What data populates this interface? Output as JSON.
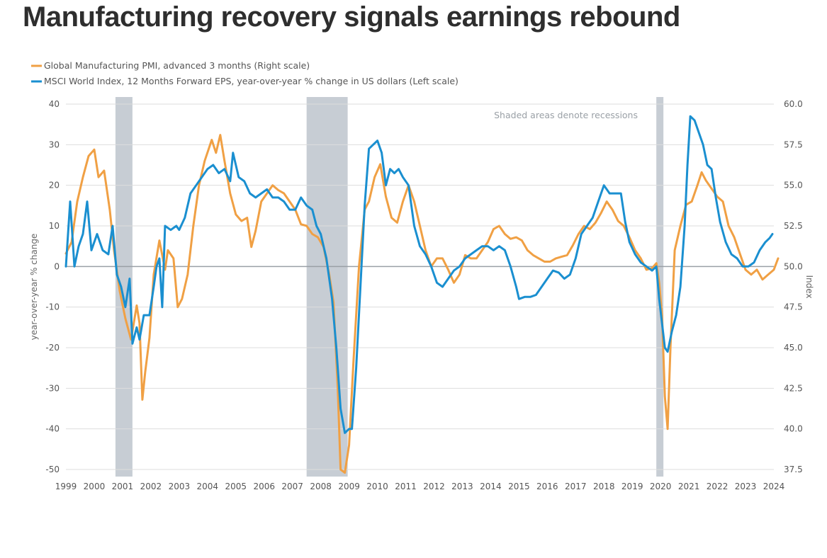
{
  "headline": "Manufacturing recovery signals earnings rebound",
  "chart_data": {
    "type": "line",
    "colors": {
      "pmi": "#F0A044",
      "eps": "#1A8FD0",
      "recession": "#C7CDD4",
      "grid": "#DDDDDD",
      "zero_line": "#9AA0A6"
    },
    "legend": [
      "Global Manufacturing PMI, advanced 3 months (Right scale)",
      "MSCI World Index, 12 Months Forward EPS, year-over-year % change in US dollars (Left scale)"
    ],
    "legend_position": "top-left",
    "annotation": "Shaded areas denote recessions",
    "ylabel_left": "year-over-year % change",
    "ylabel_right": "Index",
    "ylim_left": [
      -50,
      40
    ],
    "ylim_right": [
      37.5,
      60.0
    ],
    "xlim": [
      1999,
      2024
    ],
    "grid": true,
    "x_ticks": [
      "1999",
      "2000",
      "2001",
      "2002",
      "2003",
      "2004",
      "2005",
      "2006",
      "2007",
      "2008",
      "2009",
      "2010",
      "2011",
      "2012",
      "2013",
      "2014",
      "2015",
      "2016",
      "2017",
      "2018",
      "2019",
      "2020",
      "2021",
      "2022",
      "2023",
      "2024"
    ],
    "y_ticks_left": [
      "40",
      "30",
      "20",
      "10",
      "0",
      "-10",
      "-20",
      "-30",
      "-40",
      "-50"
    ],
    "y_ticks_right": [
      "60.0",
      "57.5",
      "55.0",
      "52.5",
      "50.0",
      "47.5",
      "45.0",
      "42.5",
      "40.0",
      "37.5"
    ],
    "recessions": [
      [
        2000.75,
        2001.35
      ],
      [
        2007.5,
        2008.95
      ],
      [
        2019.85,
        2020.1
      ]
    ],
    "series": [
      {
        "name": "Global Manufacturing PMI, advanced 3 months (Right scale)",
        "key": "pmi",
        "axis": "right",
        "points": [
          [
            1999.0,
            50.8
          ],
          [
            1999.2,
            51.5
          ],
          [
            1999.4,
            54.0
          ],
          [
            1999.6,
            55.5
          ],
          [
            1999.8,
            56.8
          ],
          [
            2000.0,
            57.2
          ],
          [
            2000.15,
            55.5
          ],
          [
            2000.35,
            55.9
          ],
          [
            2000.55,
            53.5
          ],
          [
            2000.7,
            51.0
          ],
          [
            2000.9,
            48.5
          ],
          [
            2001.1,
            46.8
          ],
          [
            2001.3,
            45.5
          ],
          [
            2001.5,
            47.6
          ],
          [
            2001.6,
            46.5
          ],
          [
            2001.7,
            41.8
          ],
          [
            2001.8,
            43.5
          ],
          [
            2001.95,
            45.6
          ],
          [
            2002.1,
            49.5
          ],
          [
            2002.3,
            51.6
          ],
          [
            2002.5,
            49.8
          ],
          [
            2002.6,
            51.0
          ],
          [
            2002.8,
            50.5
          ],
          [
            2002.95,
            47.5
          ],
          [
            2003.1,
            48.0
          ],
          [
            2003.3,
            49.5
          ],
          [
            2003.5,
            52.5
          ],
          [
            2003.7,
            55.0
          ],
          [
            2003.9,
            56.5
          ],
          [
            2004.15,
            57.8
          ],
          [
            2004.3,
            57.0
          ],
          [
            2004.45,
            58.1
          ],
          [
            2004.6,
            56.5
          ],
          [
            2004.8,
            54.5
          ],
          [
            2005.0,
            53.2
          ],
          [
            2005.2,
            52.8
          ],
          [
            2005.4,
            53.0
          ],
          [
            2005.55,
            51.2
          ],
          [
            2005.7,
            52.2
          ],
          [
            2005.9,
            54.0
          ],
          [
            2006.1,
            54.5
          ],
          [
            2006.3,
            55.0
          ],
          [
            2006.5,
            54.7
          ],
          [
            2006.7,
            54.5
          ],
          [
            2006.9,
            54.0
          ],
          [
            2007.1,
            53.5
          ],
          [
            2007.3,
            52.6
          ],
          [
            2007.5,
            52.5
          ],
          [
            2007.7,
            52.0
          ],
          [
            2007.9,
            51.8
          ],
          [
            2008.1,
            51.2
          ],
          [
            2008.3,
            49.5
          ],
          [
            2008.45,
            47.8
          ],
          [
            2008.6,
            42.5
          ],
          [
            2008.7,
            37.5
          ],
          [
            2008.85,
            37.3
          ],
          [
            2009.0,
            39.0
          ],
          [
            2009.15,
            44.0
          ],
          [
            2009.35,
            50.0
          ],
          [
            2009.55,
            53.5
          ],
          [
            2009.7,
            54.0
          ],
          [
            2009.9,
            55.5
          ],
          [
            2010.1,
            56.3
          ],
          [
            2010.3,
            54.3
          ],
          [
            2010.5,
            53.0
          ],
          [
            2010.7,
            52.7
          ],
          [
            2010.9,
            54.0
          ],
          [
            2011.1,
            55.0
          ],
          [
            2011.3,
            54.0
          ],
          [
            2011.5,
            52.5
          ],
          [
            2011.7,
            51.0
          ],
          [
            2011.9,
            50.0
          ],
          [
            2012.1,
            50.5
          ],
          [
            2012.3,
            50.5
          ],
          [
            2012.5,
            49.8
          ],
          [
            2012.7,
            49.0
          ],
          [
            2012.9,
            49.5
          ],
          [
            2013.1,
            50.7
          ],
          [
            2013.3,
            50.5
          ],
          [
            2013.5,
            50.5
          ],
          [
            2013.7,
            51.0
          ],
          [
            2013.9,
            51.5
          ],
          [
            2014.1,
            52.3
          ],
          [
            2014.3,
            52.5
          ],
          [
            2014.5,
            52.0
          ],
          [
            2014.7,
            51.7
          ],
          [
            2014.9,
            51.8
          ],
          [
            2015.1,
            51.6
          ],
          [
            2015.3,
            51.0
          ],
          [
            2015.5,
            50.7
          ],
          [
            2015.7,
            50.5
          ],
          [
            2015.9,
            50.3
          ],
          [
            2016.1,
            50.3
          ],
          [
            2016.3,
            50.5
          ],
          [
            2016.5,
            50.6
          ],
          [
            2016.7,
            50.7
          ],
          [
            2016.9,
            51.3
          ],
          [
            2017.1,
            52.0
          ],
          [
            2017.3,
            52.5
          ],
          [
            2017.5,
            52.3
          ],
          [
            2017.7,
            52.7
          ],
          [
            2017.9,
            53.3
          ],
          [
            2018.1,
            54.0
          ],
          [
            2018.3,
            53.5
          ],
          [
            2018.5,
            52.8
          ],
          [
            2018.7,
            52.5
          ],
          [
            2018.9,
            51.8
          ],
          [
            2019.1,
            51.0
          ],
          [
            2019.3,
            50.5
          ],
          [
            2019.5,
            49.8
          ],
          [
            2019.7,
            49.9
          ],
          [
            2019.85,
            50.2
          ],
          [
            2019.95,
            49.0
          ],
          [
            2020.05,
            47.0
          ],
          [
            2020.15,
            42.0
          ],
          [
            2020.25,
            40.0
          ],
          [
            2020.35,
            45.0
          ],
          [
            2020.5,
            51.0
          ],
          [
            2020.7,
            52.5
          ],
          [
            2020.9,
            53.8
          ],
          [
            2021.1,
            54.0
          ],
          [
            2021.3,
            55.0
          ],
          [
            2021.45,
            55.8
          ],
          [
            2021.6,
            55.3
          ],
          [
            2021.8,
            54.8
          ],
          [
            2022.0,
            54.3
          ],
          [
            2022.2,
            54.0
          ],
          [
            2022.4,
            52.5
          ],
          [
            2022.6,
            51.8
          ],
          [
            2022.8,
            50.8
          ],
          [
            2023.0,
            49.8
          ],
          [
            2023.2,
            49.5
          ],
          [
            2023.4,
            49.8
          ],
          [
            2023.6,
            49.2
          ],
          [
            2023.8,
            49.5
          ],
          [
            2024.0,
            49.8
          ],
          [
            2024.15,
            50.5
          ]
        ]
      },
      {
        "name": "MSCI World Index, 12 Months Forward EPS, year-over-year % change in US dollars (Left scale)",
        "key": "eps",
        "axis": "left",
        "points": [
          [
            1999.0,
            0.0
          ],
          [
            1999.15,
            16.0
          ],
          [
            1999.3,
            0.0
          ],
          [
            1999.45,
            5.0
          ],
          [
            1999.6,
            8.0
          ],
          [
            1999.75,
            16.0
          ],
          [
            1999.9,
            4.0
          ],
          [
            2000.1,
            8.0
          ],
          [
            2000.3,
            4.0
          ],
          [
            2000.5,
            3.0
          ],
          [
            2000.65,
            10.0
          ],
          [
            2000.8,
            -2.0
          ],
          [
            2000.95,
            -5.0
          ],
          [
            2001.1,
            -10.0
          ],
          [
            2001.25,
            -3.0
          ],
          [
            2001.35,
            -19.0
          ],
          [
            2001.5,
            -15.0
          ],
          [
            2001.6,
            -18.0
          ],
          [
            2001.75,
            -12.0
          ],
          [
            2001.95,
            -12.0
          ],
          [
            2002.1,
            -5.0
          ],
          [
            2002.2,
            0.0
          ],
          [
            2002.3,
            2.0
          ],
          [
            2002.4,
            -10.0
          ],
          [
            2002.5,
            10.0
          ],
          [
            2002.7,
            9.0
          ],
          [
            2002.9,
            10.0
          ],
          [
            2003.0,
            9.0
          ],
          [
            2003.2,
            12.0
          ],
          [
            2003.4,
            18.0
          ],
          [
            2003.6,
            20.0
          ],
          [
            2003.8,
            22.0
          ],
          [
            2004.0,
            24.0
          ],
          [
            2004.2,
            25.0
          ],
          [
            2004.4,
            23.0
          ],
          [
            2004.6,
            24.0
          ],
          [
            2004.8,
            21.0
          ],
          [
            2004.9,
            28.0
          ],
          [
            2005.1,
            22.0
          ],
          [
            2005.3,
            21.0
          ],
          [
            2005.5,
            18.0
          ],
          [
            2005.7,
            17.0
          ],
          [
            2005.9,
            18.0
          ],
          [
            2006.1,
            19.0
          ],
          [
            2006.3,
            17.0
          ],
          [
            2006.5,
            17.0
          ],
          [
            2006.7,
            16.0
          ],
          [
            2006.9,
            14.0
          ],
          [
            2007.1,
            14.0
          ],
          [
            2007.3,
            17.0
          ],
          [
            2007.5,
            15.0
          ],
          [
            2007.7,
            14.0
          ],
          [
            2007.85,
            10.0
          ],
          [
            2008.0,
            8.0
          ],
          [
            2008.2,
            2.0
          ],
          [
            2008.4,
            -8.0
          ],
          [
            2008.55,
            -20.0
          ],
          [
            2008.7,
            -35.0
          ],
          [
            2008.85,
            -41.0
          ],
          [
            2009.0,
            -40.0
          ],
          [
            2009.1,
            -40.0
          ],
          [
            2009.25,
            -25.0
          ],
          [
            2009.4,
            -5.0
          ],
          [
            2009.55,
            15.0
          ],
          [
            2009.7,
            29.0
          ],
          [
            2009.85,
            30.0
          ],
          [
            2010.0,
            31.0
          ],
          [
            2010.15,
            28.0
          ],
          [
            2010.3,
            20.0
          ],
          [
            2010.45,
            24.0
          ],
          [
            2010.6,
            23.0
          ],
          [
            2010.75,
            24.0
          ],
          [
            2010.9,
            22.0
          ],
          [
            2011.1,
            20.0
          ],
          [
            2011.3,
            10.0
          ],
          [
            2011.5,
            5.0
          ],
          [
            2011.7,
            3.0
          ],
          [
            2011.9,
            0.0
          ],
          [
            2012.1,
            -4.0
          ],
          [
            2012.3,
            -5.0
          ],
          [
            2012.5,
            -3.0
          ],
          [
            2012.7,
            -1.0
          ],
          [
            2012.9,
            0.0
          ],
          [
            2013.1,
            2.0
          ],
          [
            2013.3,
            3.0
          ],
          [
            2013.5,
            4.0
          ],
          [
            2013.7,
            5.0
          ],
          [
            2013.9,
            5.0
          ],
          [
            2014.1,
            4.0
          ],
          [
            2014.3,
            5.0
          ],
          [
            2014.5,
            4.0
          ],
          [
            2014.7,
            0.0
          ],
          [
            2014.9,
            -5.0
          ],
          [
            2015.0,
            -8.0
          ],
          [
            2015.2,
            -7.5
          ],
          [
            2015.4,
            -7.5
          ],
          [
            2015.6,
            -7.0
          ],
          [
            2015.8,
            -5.0
          ],
          [
            2016.0,
            -3.0
          ],
          [
            2016.2,
            -1.0
          ],
          [
            2016.4,
            -1.5
          ],
          [
            2016.6,
            -3.0
          ],
          [
            2016.8,
            -2.0
          ],
          [
            2017.0,
            2.0
          ],
          [
            2017.2,
            8.0
          ],
          [
            2017.4,
            10.0
          ],
          [
            2017.6,
            12.0
          ],
          [
            2017.8,
            16.0
          ],
          [
            2018.0,
            20.0
          ],
          [
            2018.2,
            18.0
          ],
          [
            2018.4,
            18.0
          ],
          [
            2018.6,
            18.0
          ],
          [
            2018.75,
            11.0
          ],
          [
            2018.9,
            6.0
          ],
          [
            2019.1,
            3.0
          ],
          [
            2019.3,
            1.0
          ],
          [
            2019.5,
            0.0
          ],
          [
            2019.7,
            -1.0
          ],
          [
            2019.85,
            0.0
          ],
          [
            2019.95,
            -8.0
          ],
          [
            2020.05,
            -14.0
          ],
          [
            2020.15,
            -20.0
          ],
          [
            2020.25,
            -21.0
          ],
          [
            2020.4,
            -16.0
          ],
          [
            2020.55,
            -12.0
          ],
          [
            2020.7,
            -5.0
          ],
          [
            2020.85,
            10.0
          ],
          [
            2020.95,
            25.0
          ],
          [
            2021.05,
            37.0
          ],
          [
            2021.2,
            36.0
          ],
          [
            2021.35,
            33.0
          ],
          [
            2021.5,
            30.0
          ],
          [
            2021.65,
            25.0
          ],
          [
            2021.8,
            24.0
          ],
          [
            2021.95,
            17.0
          ],
          [
            2022.1,
            11.0
          ],
          [
            2022.3,
            6.0
          ],
          [
            2022.5,
            3.0
          ],
          [
            2022.7,
            2.0
          ],
          [
            2022.9,
            0.0
          ],
          [
            2023.1,
            0.0
          ],
          [
            2023.3,
            1.0
          ],
          [
            2023.5,
            4.0
          ],
          [
            2023.7,
            6.0
          ],
          [
            2023.85,
            7.0
          ],
          [
            2023.95,
            8.0
          ]
        ]
      }
    ]
  }
}
